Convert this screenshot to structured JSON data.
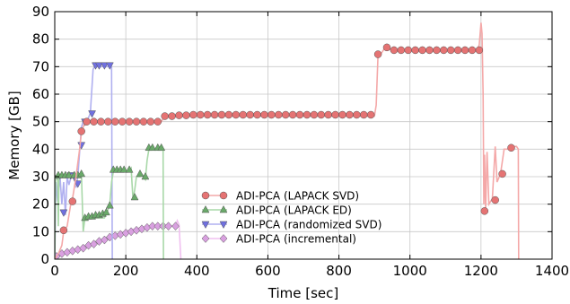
{
  "chart_data": {
    "type": "line",
    "xlabel": "Time [sec]",
    "ylabel": "Memory [GB]",
    "xlim": [
      0,
      1400
    ],
    "ylim": [
      0,
      90
    ],
    "xticks": [
      0,
      200,
      400,
      600,
      800,
      1000,
      1200,
      1400
    ],
    "yticks": [
      0,
      10,
      20,
      30,
      40,
      50,
      60,
      70,
      80,
      90
    ],
    "grid": true,
    "legend": {
      "placement": "lower-center"
    },
    "series": [
      {
        "name": "ADI-PCA (LAPACK SVD)",
        "marker": "circle",
        "line_color": "#f4a8a8",
        "marker_color": "#e57373",
        "line": [
          [
            0,
            0
          ],
          [
            10,
            2
          ],
          [
            20,
            5
          ],
          [
            25,
            10
          ],
          [
            35,
            12
          ],
          [
            45,
            20
          ],
          [
            50,
            22
          ],
          [
            60,
            30
          ],
          [
            70,
            40
          ],
          [
            75,
            46
          ],
          [
            80,
            48
          ],
          [
            85,
            50
          ],
          [
            300,
            50
          ],
          [
            305,
            51
          ],
          [
            310,
            52
          ],
          [
            900,
            52
          ],
          [
            905,
            56
          ],
          [
            910,
            74
          ],
          [
            920,
            75
          ],
          [
            930,
            77
          ],
          [
            950,
            76
          ],
          [
            1190,
            76
          ],
          [
            1195,
            78
          ],
          [
            1200,
            86
          ],
          [
            1203,
            82
          ],
          [
            1206,
            60
          ],
          [
            1208,
            20
          ],
          [
            1210,
            38
          ],
          [
            1213,
            18
          ],
          [
            1217,
            39
          ],
          [
            1222,
            20
          ],
          [
            1232,
            22
          ],
          [
            1240,
            41
          ],
          [
            1245,
            28
          ],
          [
            1255,
            31
          ],
          [
            1265,
            40
          ],
          [
            1280,
            40
          ],
          [
            1290,
            41
          ],
          [
            1300,
            41
          ],
          [
            1305,
            40
          ],
          [
            1306,
            0
          ]
        ],
        "points": [
          [
            25,
            10.5
          ],
          [
            50,
            21
          ],
          [
            75,
            46.5
          ],
          [
            90,
            50
          ],
          [
            110,
            50
          ],
          [
            130,
            50
          ],
          [
            150,
            50
          ],
          [
            170,
            50
          ],
          [
            190,
            50
          ],
          [
            210,
            50
          ],
          [
            230,
            50
          ],
          [
            250,
            50
          ],
          [
            270,
            50
          ],
          [
            290,
            50
          ],
          [
            310,
            52
          ],
          [
            330,
            52
          ],
          [
            350,
            52.3
          ],
          [
            370,
            52.3
          ],
          [
            390,
            52.5
          ],
          [
            410,
            52.5
          ],
          [
            430,
            52.5
          ],
          [
            450,
            52.5
          ],
          [
            470,
            52.5
          ],
          [
            490,
            52.5
          ],
          [
            510,
            52.5
          ],
          [
            530,
            52.5
          ],
          [
            550,
            52.5
          ],
          [
            570,
            52.5
          ],
          [
            590,
            52.5
          ],
          [
            610,
            52.5
          ],
          [
            630,
            52.5
          ],
          [
            650,
            52.5
          ],
          [
            670,
            52.5
          ],
          [
            690,
            52.5
          ],
          [
            710,
            52.5
          ],
          [
            730,
            52.5
          ],
          [
            750,
            52.5
          ],
          [
            770,
            52.5
          ],
          [
            790,
            52.5
          ],
          [
            810,
            52.5
          ],
          [
            830,
            52.5
          ],
          [
            850,
            52.5
          ],
          [
            870,
            52.5
          ],
          [
            890,
            52.5
          ],
          [
            910,
            74.5
          ],
          [
            935,
            77
          ],
          [
            955,
            76
          ],
          [
            975,
            76
          ],
          [
            995,
            76
          ],
          [
            1015,
            76
          ],
          [
            1035,
            76
          ],
          [
            1055,
            76
          ],
          [
            1075,
            76
          ],
          [
            1095,
            76
          ],
          [
            1115,
            76
          ],
          [
            1135,
            76
          ],
          [
            1155,
            76
          ],
          [
            1175,
            76
          ],
          [
            1195,
            76
          ],
          [
            1210,
            17.5
          ],
          [
            1240,
            21.5
          ],
          [
            1260,
            31
          ],
          [
            1285,
            40.5
          ]
        ]
      },
      {
        "name": "ADI-PCA (LAPACK ED)",
        "marker": "triangle-up",
        "line_color": "#a8d8a8",
        "marker_color": "#6aaa6a",
        "line": [
          [
            0,
            0
          ],
          [
            2,
            30
          ],
          [
            8,
            31
          ],
          [
            10,
            12
          ],
          [
            12,
            30
          ],
          [
            75,
            31
          ],
          [
            80,
            10
          ],
          [
            85,
            15
          ],
          [
            140,
            15
          ],
          [
            150,
            18
          ],
          [
            155,
            20
          ],
          [
            160,
            28
          ],
          [
            165,
            32
          ],
          [
            210,
            32
          ],
          [
            215,
            33
          ],
          [
            220,
            22
          ],
          [
            225,
            25
          ],
          [
            230,
            30
          ],
          [
            240,
            30
          ],
          [
            245,
            31
          ],
          [
            255,
            29
          ],
          [
            260,
            36
          ],
          [
            265,
            40
          ],
          [
            305,
            40
          ],
          [
            306,
            0
          ]
        ],
        "points": [
          [
            10,
            30.5
          ],
          [
            20,
            30.5
          ],
          [
            30,
            30.5
          ],
          [
            40,
            30.5
          ],
          [
            55,
            30.5
          ],
          [
            65,
            30.5
          ],
          [
            75,
            31
          ],
          [
            85,
            15
          ],
          [
            95,
            15.5
          ],
          [
            105,
            15.5
          ],
          [
            115,
            16
          ],
          [
            125,
            16
          ],
          [
            135,
            16.5
          ],
          [
            145,
            17
          ],
          [
            155,
            19.5
          ],
          [
            165,
            32.5
          ],
          [
            175,
            32.5
          ],
          [
            185,
            32.5
          ],
          [
            195,
            32.5
          ],
          [
            210,
            32.5
          ],
          [
            225,
            22.5
          ],
          [
            240,
            31
          ],
          [
            255,
            30
          ],
          [
            265,
            40.5
          ],
          [
            275,
            40.5
          ],
          [
            290,
            40.5
          ],
          [
            300,
            40.5
          ]
        ]
      },
      {
        "name": "ADI-PCA (randomized SVD)",
        "marker": "triangle-down",
        "line_color": "#b0b0f0",
        "marker_color": "#7070e0",
        "line": [
          [
            0,
            0
          ],
          [
            3,
            28
          ],
          [
            8,
            21
          ],
          [
            15,
            30
          ],
          [
            20,
            20
          ],
          [
            25,
            28
          ],
          [
            30,
            16
          ],
          [
            35,
            30
          ],
          [
            40,
            27
          ],
          [
            48,
            31
          ],
          [
            55,
            30
          ],
          [
            60,
            26
          ],
          [
            65,
            30
          ],
          [
            75,
            48
          ],
          [
            80,
            50
          ],
          [
            90,
            50
          ],
          [
            100,
            53
          ],
          [
            108,
            69
          ],
          [
            112,
            70
          ],
          [
            155,
            70
          ],
          [
            160,
            70
          ],
          [
            162,
            0
          ]
        ],
        "points": [
          [
            10,
            29.5
          ],
          [
            25,
            17
          ],
          [
            45,
            30.5
          ],
          [
            55,
            30
          ],
          [
            65,
            27.5
          ],
          [
            75,
            41.5
          ],
          [
            85,
            50
          ],
          [
            105,
            53
          ],
          [
            115,
            70.5
          ],
          [
            125,
            70.5
          ],
          [
            140,
            70.5
          ],
          [
            155,
            70.5
          ]
        ]
      },
      {
        "name": "ADI-PCA (incremental)",
        "marker": "diamond",
        "line_color": "#f0c0f0",
        "marker_color": "#d9a0e0",
        "line": [
          [
            0,
            0
          ],
          [
            5,
            1
          ],
          [
            20,
            2
          ],
          [
            60,
            3.5
          ],
          [
            110,
            6
          ],
          [
            160,
            8.5
          ],
          [
            210,
            10.5
          ],
          [
            260,
            12
          ],
          [
            340,
            12
          ],
          [
            345,
            14
          ],
          [
            350,
            12.5
          ],
          [
            355,
            0
          ]
        ],
        "points": [
          [
            5,
            1
          ],
          [
            20,
            2
          ],
          [
            35,
            2.5
          ],
          [
            50,
            3
          ],
          [
            65,
            3.5
          ],
          [
            80,
            4
          ],
          [
            95,
            5
          ],
          [
            110,
            5.5
          ],
          [
            125,
            6.5
          ],
          [
            140,
            7
          ],
          [
            155,
            8
          ],
          [
            170,
            8.5
          ],
          [
            185,
            9
          ],
          [
            200,
            9.5
          ],
          [
            215,
            10
          ],
          [
            230,
            10.5
          ],
          [
            245,
            11
          ],
          [
            260,
            11.5
          ],
          [
            275,
            12
          ],
          [
            290,
            12
          ],
          [
            305,
            12
          ],
          [
            320,
            12
          ],
          [
            340,
            12
          ]
        ]
      }
    ]
  }
}
